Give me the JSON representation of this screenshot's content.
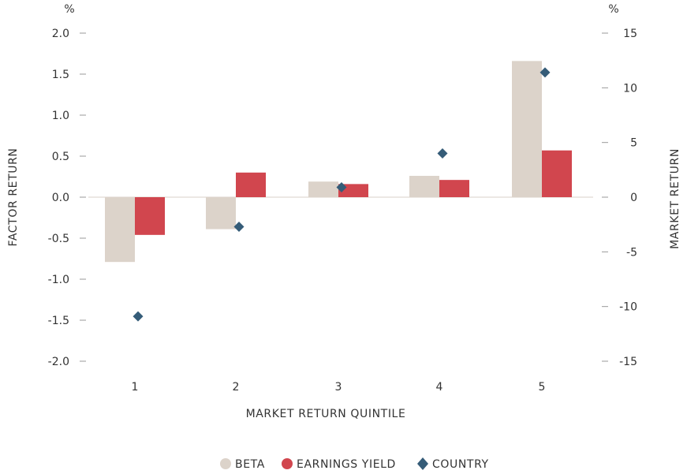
{
  "chart_data": {
    "type": "bar",
    "categories": [
      "1",
      "2",
      "3",
      "4",
      "5"
    ],
    "xlabel": "MARKET RETURN QUINTILE",
    "ylabel": "FACTOR RETURN",
    "y2label": "MARKET RETURN",
    "yunit": "%",
    "y2unit": "%",
    "ylim": [
      -2.0,
      2.0
    ],
    "y2lim": [
      -15,
      15
    ],
    "yticks": [
      "2.0",
      "1.5",
      "1.0",
      "0.5",
      "0.0",
      "-0.5",
      "-1.0",
      "-1.5",
      "-2.0"
    ],
    "y2ticks": [
      "15",
      "10",
      "5",
      "0",
      "-5",
      "-10",
      "-15"
    ],
    "grid": false,
    "legend_position": "bottom-center",
    "series": [
      {
        "name": "BETA",
        "type": "bar",
        "axis": "left",
        "color": "#dcd3ca",
        "values": [
          -0.79,
          -0.39,
          0.19,
          0.26,
          1.66
        ]
      },
      {
        "name": "EARNINGS YIELD",
        "type": "bar",
        "axis": "left",
        "color": "#d1464e",
        "values": [
          -0.46,
          0.3,
          0.16,
          0.21,
          0.57
        ]
      },
      {
        "name": "COUNTRY",
        "type": "scatter",
        "axis": "right",
        "marker": "diamond",
        "color": "#355c78",
        "values": [
          -10.9,
          -2.7,
          0.9,
          4.0,
          11.4
        ]
      }
    ]
  }
}
